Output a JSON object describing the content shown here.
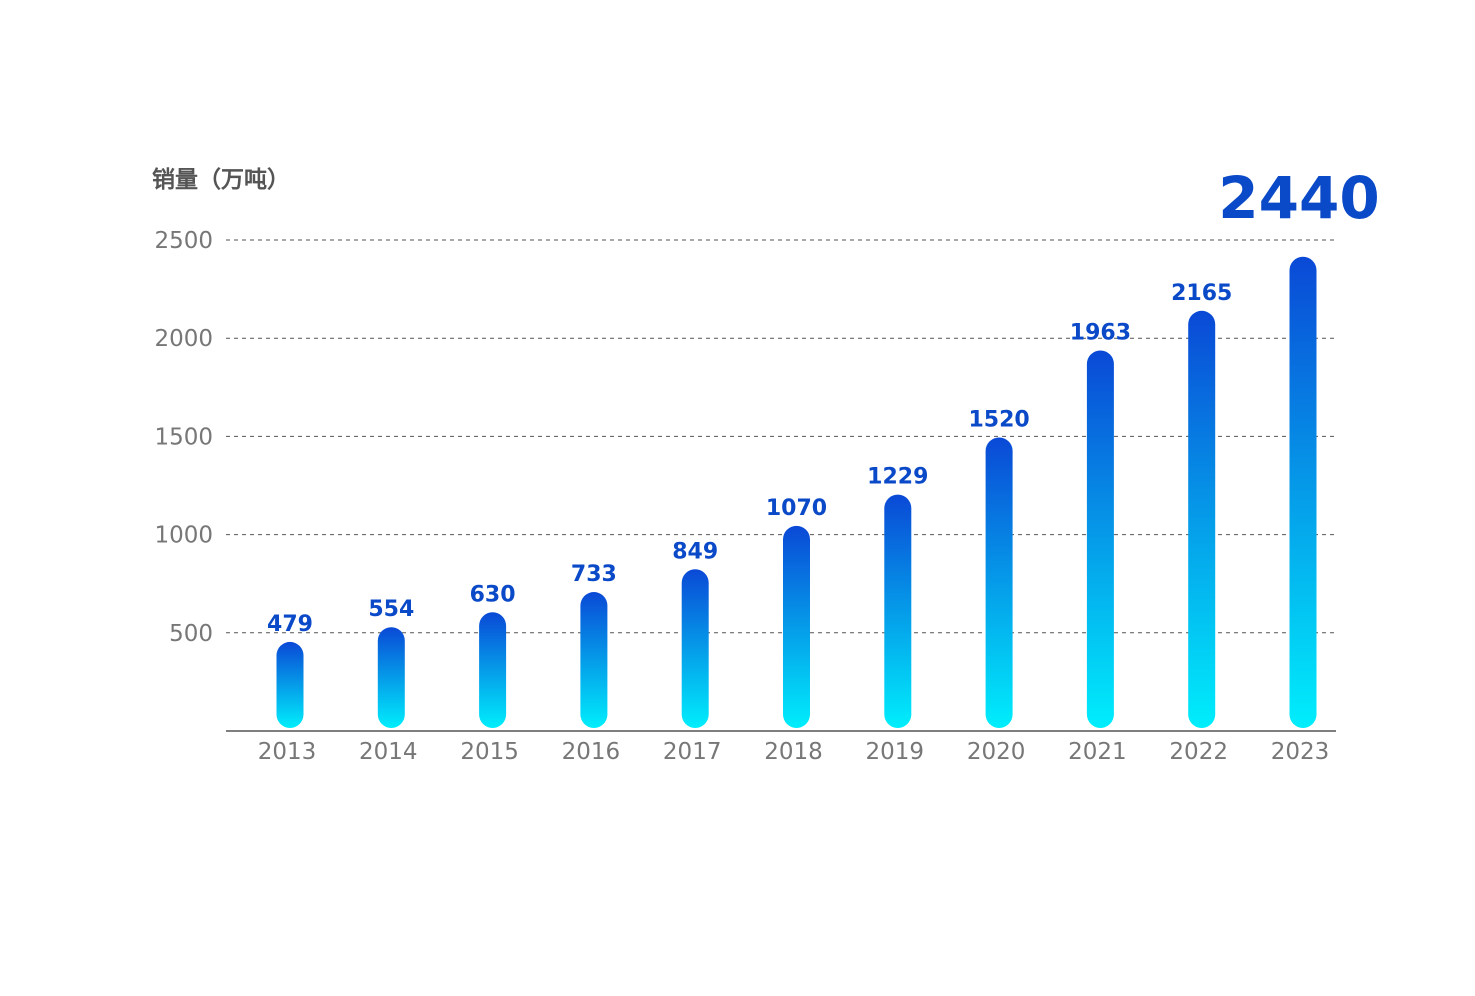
{
  "chart_data": {
    "type": "bar",
    "title": "",
    "ylabel": "销量（万吨）",
    "xlabel": "",
    "ylim": [
      0,
      2500
    ],
    "yticks": [
      500,
      1000,
      1500,
      2000,
      2500
    ],
    "grid": true,
    "categories": [
      "2013",
      "2014",
      "2015",
      "2016",
      "2017",
      "2018",
      "2019",
      "2020",
      "2021",
      "2022",
      "2023"
    ],
    "values": [
      479,
      554,
      630,
      733,
      849,
      1070,
      1229,
      1520,
      1963,
      2165,
      2440
    ],
    "labels": [
      "479",
      "554",
      "630",
      "733",
      "849",
      "1070",
      "1229",
      "1520",
      "1963",
      "2165",
      "2440"
    ],
    "highlight": "2023",
    "colors": {
      "bar_top": "#0a49d6",
      "bar_bottom": "#00eefc",
      "label": "#0a49c7",
      "axis": "#555555",
      "tick": "#777777"
    }
  }
}
